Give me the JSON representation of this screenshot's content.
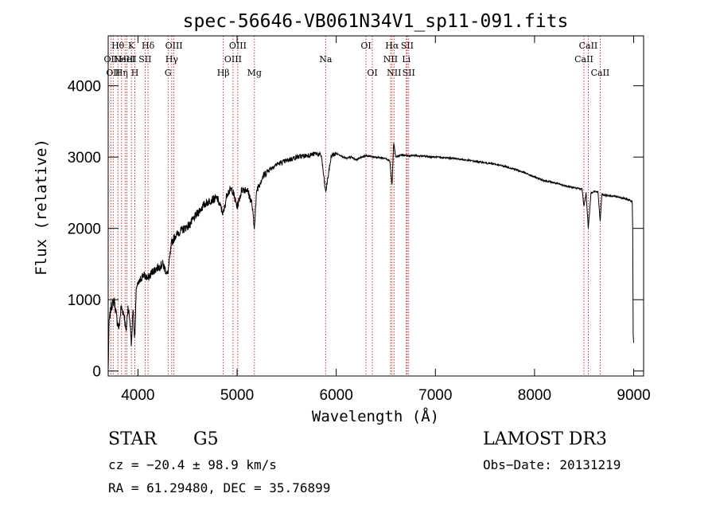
{
  "chart_data": {
    "type": "line",
    "title": "spec-56646-VB061N34V1_sp11-091.fits",
    "xlabel": "Wavelength (Å)",
    "ylabel": "Flux (relative)",
    "xlim": [
      3700,
      9100
    ],
    "ylim": [
      -70,
      4700
    ],
    "xticks": [
      4000,
      5000,
      6000,
      7000,
      8000,
      9000
    ],
    "yticks": [
      0,
      1000,
      2000,
      3000,
      4000
    ],
    "grid": false,
    "series": [
      {
        "name": "spectrum",
        "color": "#000000",
        "x": [
          3700,
          3710,
          3730,
          3760,
          3790,
          3810,
          3830,
          3860,
          3880,
          3900,
          3920,
          3935,
          3950,
          3968,
          3985,
          4000,
          4050,
          4101,
          4150,
          4200,
          4250,
          4300,
          4340,
          4380,
          4420,
          4470,
          4520,
          4570,
          4620,
          4680,
          4740,
          4800,
          4861,
          4900,
          4950,
          5000,
          5050,
          5100,
          5150,
          5172,
          5200,
          5250,
          5300,
          5400,
          5500,
          5600,
          5700,
          5800,
          5850,
          5893,
          5950,
          6000,
          6050,
          6100,
          6150,
          6200,
          6250,
          6300,
          6400,
          6500,
          6540,
          6562,
          6580,
          6600,
          6650,
          6700,
          6800,
          6900,
          7000,
          7100,
          7200,
          7300,
          7400,
          7500,
          7600,
          7700,
          7800,
          7900,
          8000,
          8100,
          8200,
          8300,
          8400,
          8480,
          8498,
          8520,
          8542,
          8570,
          8600,
          8640,
          8662,
          8680,
          8700,
          8750,
          8800,
          8850,
          8900,
          8950,
          8985,
          8990,
          8995,
          9000
        ],
        "values": [
          0,
          700,
          900,
          1000,
          700,
          600,
          900,
          800,
          550,
          900,
          700,
          350,
          900,
          450,
          1200,
          1200,
          1350,
          1300,
          1400,
          1450,
          1500,
          1350,
          1800,
          1900,
          1950,
          2000,
          2050,
          2150,
          2250,
          2350,
          2400,
          2420,
          2200,
          2500,
          2550,
          2300,
          2550,
          2550,
          2350,
          2000,
          2550,
          2700,
          2800,
          2900,
          2950,
          3000,
          3020,
          3050,
          3020,
          2500,
          3020,
          3050,
          3020,
          2980,
          3000,
          2960,
          3000,
          3020,
          3000,
          2980,
          2950,
          2600,
          3200,
          3000,
          3030,
          3020,
          3020,
          3010,
          3000,
          2990,
          2980,
          2960,
          2940,
          2920,
          2900,
          2870,
          2830,
          2780,
          2720,
          2670,
          2640,
          2600,
          2570,
          2550,
          2300,
          2500,
          2000,
          2500,
          2520,
          2510,
          2100,
          2480,
          2470,
          2460,
          2450,
          2440,
          2420,
          2400,
          2380,
          2000,
          500,
          400
        ]
      }
    ],
    "lines": [
      {
        "wavelength": 3727,
        "label": "OII",
        "row": 2
      },
      {
        "wavelength": 3750,
        "label": "OII",
        "row": 3
      },
      {
        "wavelength": 3798,
        "label": "Hθ",
        "row": 1
      },
      {
        "wavelength": 3835,
        "label": "Hη",
        "row": 3
      },
      {
        "wavelength": 3870,
        "label": "NeIII",
        "row": 2
      },
      {
        "wavelength": 3890,
        "label": "HeI",
        "row": 2
      },
      {
        "wavelength": 3934,
        "label": "K",
        "row": 1
      },
      {
        "wavelength": 3969,
        "label": "H",
        "row": 3
      },
      {
        "wavelength": 4072,
        "label": "SII",
        "row": 2
      },
      {
        "wavelength": 4102,
        "label": "Hδ",
        "row": 1
      },
      {
        "wavelength": 4304,
        "label": "G",
        "row": 3
      },
      {
        "wavelength": 4341,
        "label": "Hγ",
        "row": 2
      },
      {
        "wavelength": 4363,
        "label": "OIII",
        "row": 1
      },
      {
        "wavelength": 4861,
        "label": "Hβ",
        "row": 3
      },
      {
        "wavelength": 4959,
        "label": "OIII",
        "row": 2
      },
      {
        "wavelength": 5007,
        "label": "OIII",
        "row": 1
      },
      {
        "wavelength": 5175,
        "label": "Mg",
        "row": 3
      },
      {
        "wavelength": 5893,
        "label": "Na",
        "row": 2
      },
      {
        "wavelength": 6300,
        "label": "OI",
        "row": 1
      },
      {
        "wavelength": 6364,
        "label": "OI",
        "row": 3
      },
      {
        "wavelength": 6548,
        "label": "NII",
        "row": 2
      },
      {
        "wavelength": 6563,
        "label": "Hα",
        "row": 1
      },
      {
        "wavelength": 6583,
        "label": "NII",
        "row": 3
      },
      {
        "wavelength": 6707,
        "label": "Li",
        "row": 2
      },
      {
        "wavelength": 6716,
        "label": "SII",
        "row": 1
      },
      {
        "wavelength": 6731,
        "label": "SII",
        "row": 3
      },
      {
        "wavelength": 8498,
        "label": "CaII",
        "row": 2
      },
      {
        "wavelength": 8542,
        "label": "CaII",
        "row": 1
      },
      {
        "wavelength": 8662,
        "label": "CaII",
        "row": 3
      }
    ]
  },
  "info": {
    "class_label": "STAR",
    "subclass_label": "G5",
    "survey_label": "LAMOST DR3",
    "redshift_text": "cz = −20.4 ± 98.9 km/s",
    "obs_date_text": "Obs−Date: 20131219",
    "coords_text": "RA =  61.29480, DEC =  35.76899"
  }
}
